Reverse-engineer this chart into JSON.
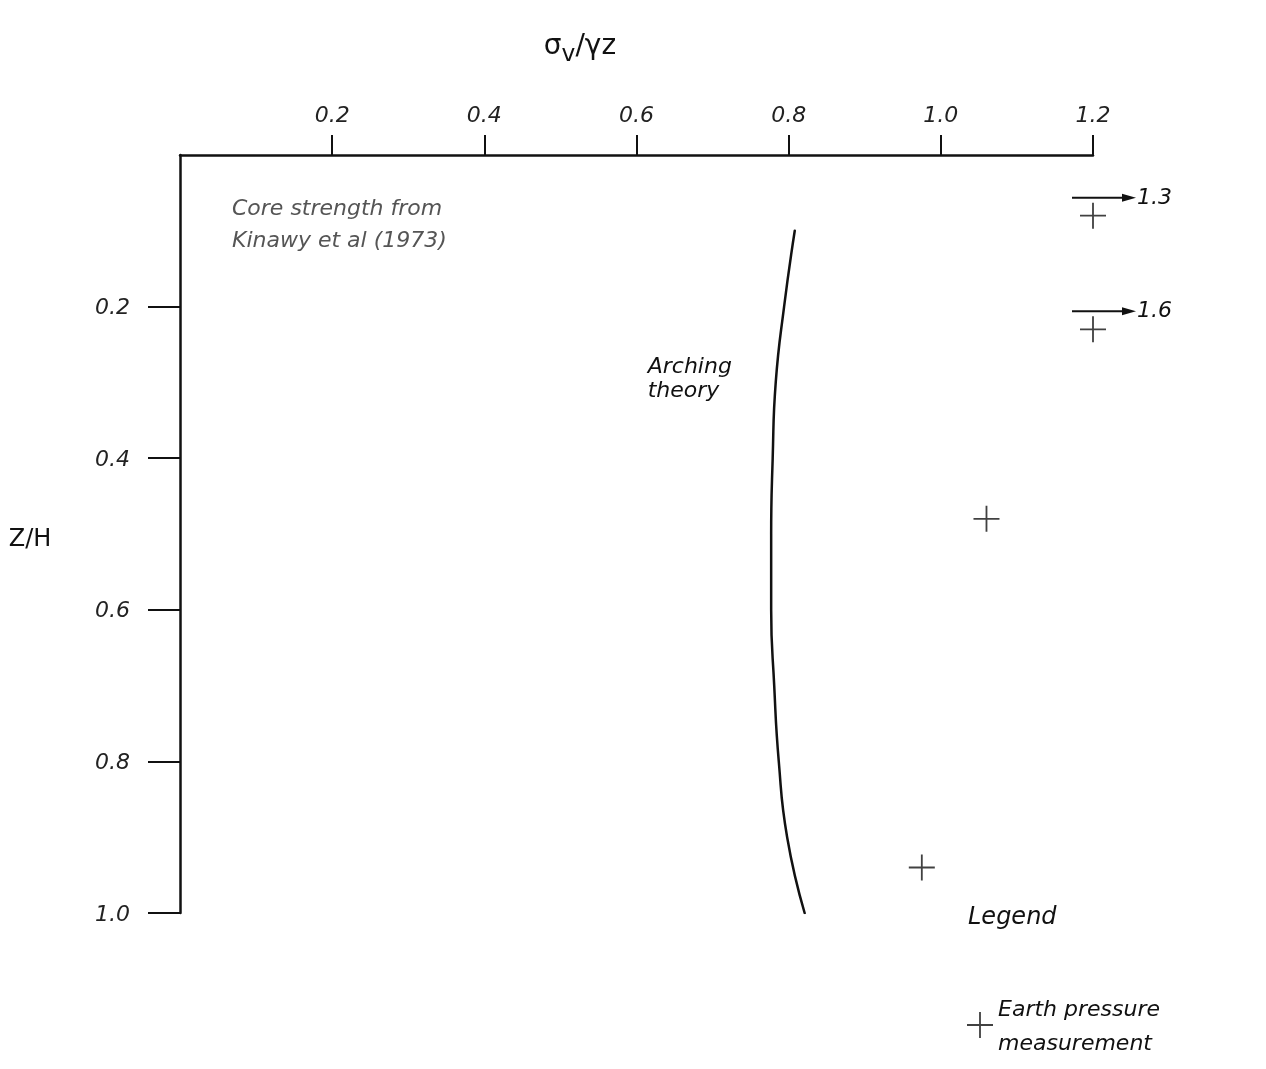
{
  "chart_data": {
    "type": "scatter",
    "xlabel": "σ$_{v}$/γz",
    "ylabel": "Z/H",
    "legend_title": "Legend",
    "legend": "bottom right",
    "xlim": [
      0,
      1.2
    ],
    "xticks": [
      0.2,
      0.4,
      0.6,
      0.8,
      {
        "value": 1,
        "label": "1.0"
      },
      1.2
    ],
    "ylim": [
      1,
      0
    ],
    "yticks": [
      0.2,
      0.4,
      0.6,
      0.8,
      {
        "value": 1,
        "label": "1.0"
      }
    ],
    "series": [
      {
        "type": "line",
        "name": "Arching theory",
        "color": "#111111",
        "marker": "none",
        "x": [
          0.808,
          0.794,
          0.783,
          0.779,
          0.777,
          0.777,
          0.781,
          0.787,
          0.798,
          0.821
        ],
        "values": [
          0.1,
          0.2,
          0.3,
          0.4,
          0.5,
          0.6,
          0.7,
          0.8,
          0.9,
          1.0
        ]
      },
      {
        "name": "Earth pressure measurement",
        "color": "#111111",
        "marker": "cross",
        "x": [
          1.2,
          1.2,
          1.06,
          0.975
        ],
        "values": [
          0.08,
          0.23,
          0.48,
          0.94
        ]
      }
    ],
    "annotations": [
      "Core strength from Kinawy et al (1973)",
      {
        "text": "1.3",
        "x": 1.2,
        "y": 0.08
      },
      {
        "text": "1.6",
        "x": 1.2,
        "y": 0.23
      }
    ]
  }
}
